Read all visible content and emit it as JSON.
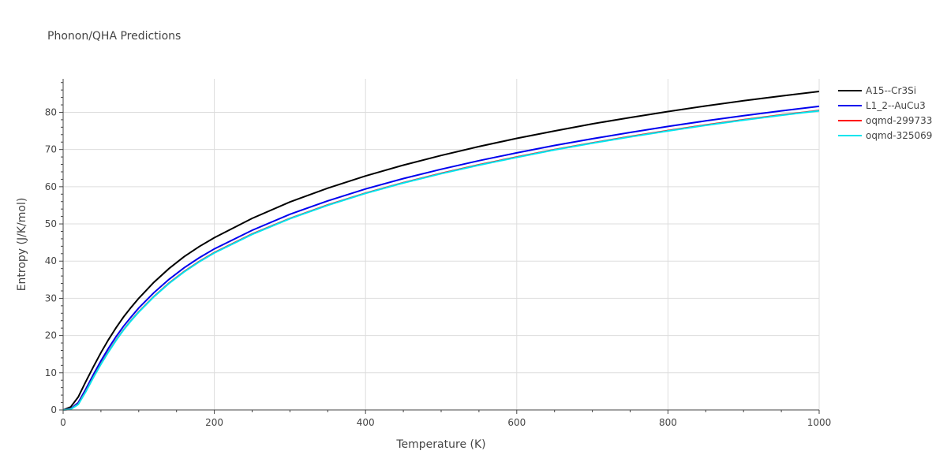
{
  "chart_data": {
    "type": "line",
    "title": "Phonon/QHA Predictions",
    "xlabel": "Temperature (K)",
    "ylabel": "Entropy (J/K/mol)",
    "xlim": [
      0,
      1000
    ],
    "ylim": [
      0,
      89
    ],
    "xticks": [
      0,
      200,
      400,
      600,
      800,
      1000
    ],
    "yticks": [
      0,
      10,
      20,
      30,
      40,
      50,
      60,
      70,
      80
    ],
    "grid": true,
    "legend_position": "top-right",
    "series": [
      {
        "name": "A15--Cr3Si",
        "color": "#000000",
        "x": [
          0,
          10,
          20,
          30,
          40,
          50,
          60,
          70,
          80,
          90,
          100,
          120,
          140,
          160,
          180,
          200,
          250,
          300,
          350,
          400,
          450,
          500,
          550,
          600,
          650,
          700,
          750,
          800,
          850,
          900,
          950,
          1000
        ],
        "y": [
          0,
          0.8,
          3.5,
          7.6,
          11.6,
          15.4,
          18.9,
          22.1,
          25.0,
          27.6,
          30.0,
          34.3,
          38.0,
          41.2,
          43.9,
          46.3,
          51.5,
          55.9,
          59.6,
          62.9,
          65.8,
          68.4,
          70.8,
          73.0,
          75.0,
          76.9,
          78.6,
          80.2,
          81.7,
          83.1,
          84.4,
          85.6
        ]
      },
      {
        "name": "L1_2--AuCu3",
        "color": "#0000ee",
        "x": [
          0,
          10,
          20,
          30,
          40,
          50,
          60,
          70,
          80,
          90,
          100,
          120,
          140,
          160,
          180,
          200,
          250,
          300,
          350,
          400,
          450,
          500,
          550,
          600,
          650,
          700,
          750,
          800,
          850,
          900,
          950,
          1000
        ],
        "y": [
          0,
          0.3,
          2.0,
          5.6,
          9.5,
          13.2,
          16.6,
          19.7,
          22.5,
          25.0,
          27.4,
          31.5,
          35.1,
          38.2,
          40.9,
          43.3,
          48.3,
          52.6,
          56.2,
          59.4,
          62.2,
          64.7,
          67.0,
          69.1,
          71.1,
          72.9,
          74.6,
          76.2,
          77.7,
          79.1,
          80.4,
          81.6
        ]
      },
      {
        "name": "oqmd-299733",
        "color": "#ff0000",
        "x": [
          0,
          10,
          20,
          30,
          40,
          50,
          60,
          70,
          80,
          90,
          100,
          120,
          140,
          160,
          180,
          200,
          250,
          300,
          350,
          400,
          450,
          500,
          550,
          600,
          650,
          700,
          750,
          800,
          850,
          900,
          950,
          1000
        ],
        "y": [
          0,
          0.2,
          1.6,
          5.0,
          8.8,
          12.4,
          15.7,
          18.8,
          21.6,
          24.1,
          26.4,
          30.5,
          34.1,
          37.2,
          39.9,
          42.3,
          47.3,
          51.5,
          55.1,
          58.3,
          61.1,
          63.6,
          65.9,
          68.0,
          70.0,
          71.8,
          73.5,
          75.1,
          76.6,
          78.0,
          79.3,
          80.5
        ]
      },
      {
        "name": "oqmd-325069",
        "color": "#00e5ee",
        "x": [
          0,
          10,
          20,
          30,
          40,
          50,
          60,
          70,
          80,
          90,
          100,
          120,
          140,
          160,
          180,
          200,
          250,
          300,
          350,
          400,
          450,
          500,
          550,
          600,
          650,
          700,
          750,
          800,
          850,
          900,
          950,
          1000
        ],
        "y": [
          0,
          0.2,
          1.5,
          4.9,
          8.7,
          12.3,
          15.6,
          18.7,
          21.5,
          24.0,
          26.3,
          30.4,
          34.0,
          37.1,
          39.8,
          42.2,
          47.2,
          51.4,
          55.0,
          58.2,
          61.0,
          63.5,
          65.8,
          67.9,
          69.9,
          71.7,
          73.4,
          75.0,
          76.5,
          77.9,
          79.2,
          80.4
        ]
      }
    ]
  }
}
